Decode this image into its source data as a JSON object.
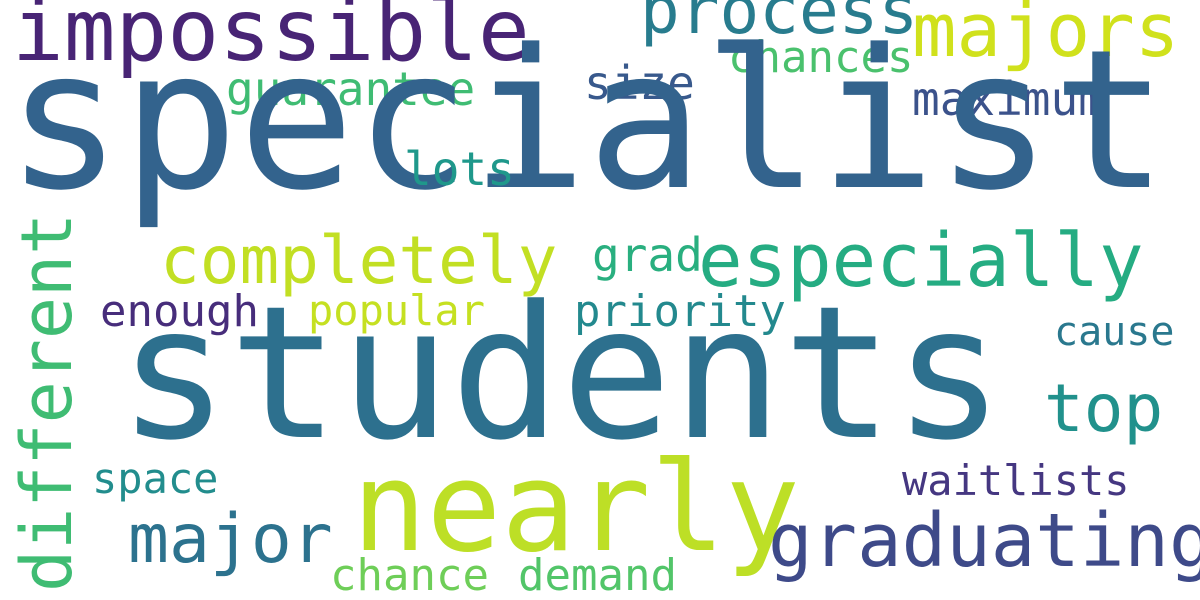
{
  "words": {
    "specialist": {
      "text": "specialist",
      "color": "#33638d"
    },
    "students": {
      "text": "students",
      "color": "#2d708e"
    },
    "nearly": {
      "text": "nearly",
      "color": "#bddf26"
    },
    "impossible": {
      "text": "impossible",
      "color": "#482475"
    },
    "process": {
      "text": "process",
      "color": "#287c8e"
    },
    "majors": {
      "text": "majors",
      "color": "#d0e11c"
    },
    "chances": {
      "text": "chances",
      "color": "#4ac16d"
    },
    "guarantee": {
      "text": "guarantee",
      "color": "#3fbc73"
    },
    "size": {
      "text": "size",
      "color": "#38598c"
    },
    "maximum": {
      "text": "maximum",
      "color": "#3b528b"
    },
    "lots": {
      "text": "lots",
      "color": "#1f988b"
    },
    "completely": {
      "text": "completely",
      "color": "#c2df23"
    },
    "especially": {
      "text": "especially",
      "color": "#25ac82"
    },
    "grad": {
      "text": "grad",
      "color": "#29af7f"
    },
    "different": {
      "text": "different",
      "color": "#3fbc73"
    },
    "enough": {
      "text": "enough",
      "color": "#472d7b"
    },
    "popular": {
      "text": "popular",
      "color": "#c5e021"
    },
    "priority": {
      "text": "priority",
      "color": "#23898e"
    },
    "cause": {
      "text": "cause",
      "color": "#2a788e"
    },
    "top": {
      "text": "top",
      "color": "#21918c"
    },
    "space": {
      "text": "space",
      "color": "#228d8d"
    },
    "waitlists": {
      "text": "waitlists",
      "color": "#453781"
    },
    "major": {
      "text": "major",
      "color": "#2c728e"
    },
    "graduating": {
      "text": "graduating",
      "color": "#3e4a89"
    },
    "chance": {
      "text": "chance",
      "color": "#6ece58"
    },
    "demand": {
      "text": "demand",
      "color": "#52c569"
    }
  }
}
